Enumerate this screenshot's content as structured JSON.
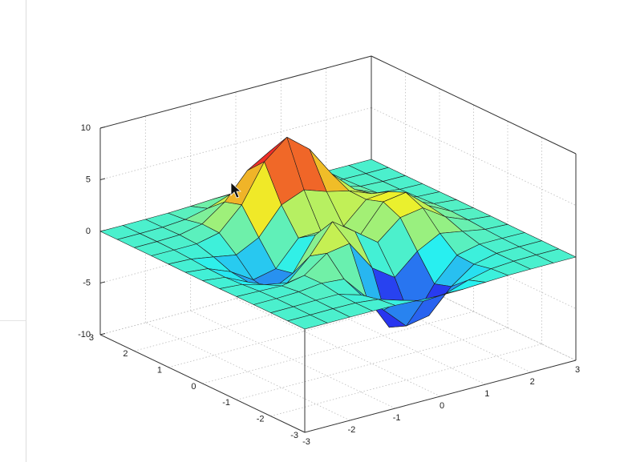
{
  "chart_data": {
    "type": "surface",
    "x": [
      -3,
      -2.5,
      -2,
      -1.5,
      -1,
      -0.5,
      0,
      0.5,
      1,
      1.5,
      2,
      2.5,
      3
    ],
    "y": [
      -3,
      -2.5,
      -2,
      -1.5,
      -1,
      -0.5,
      0,
      0.5,
      1,
      1.5,
      2,
      2.5,
      3
    ],
    "z": [
      [
        0,
        0,
        0,
        0,
        -0.03,
        -0.14,
        -0.24,
        -0.22,
        -0.11,
        -0.03,
        -0.01,
        0,
        0
      ],
      [
        0,
        0,
        0.02,
        0,
        -0.23,
        -0.91,
        -1.57,
        -1.41,
        -0.69,
        -0.18,
        -0.03,
        0,
        0
      ],
      [
        0,
        0.01,
        0.05,
        0.05,
        -0.59,
        -2.64,
        -4.76,
        -4.35,
        -2.1,
        -0.53,
        -0.06,
        0,
        0
      ],
      [
        0,
        0.01,
        0.08,
        0.33,
        0.15,
        -2.19,
        -5.68,
        -5.76,
        -2.64,
        -0.44,
        0.04,
        0.03,
        0
      ],
      [
        -0.01,
        -0.06,
        -0.13,
        0.3,
        1.86,
        2.22,
        -0.72,
        -2.22,
        -0.27,
        0.88,
        0.5,
        0.11,
        0.01
      ],
      [
        -0.03,
        -0.2,
        -0.8,
        -1.21,
        0.8,
        3.55,
        2.0,
        0.39,
        2.2,
        2.56,
        1.12,
        0.24,
        0.03
      ],
      [
        -0.04,
        -0.3,
        -1.33,
        -2.77,
        -1.65,
        1.48,
        0.98,
        0.38,
        2.94,
        3.27,
        1.41,
        0.3,
        0.03
      ],
      [
        -0.03,
        -0.25,
        -1.12,
        -2.49,
        -2.0,
        0.39,
        0.46,
        0.38,
        2.38,
        2.56,
        1.09,
        0.23,
        0.03
      ],
      [
        -0.01,
        -0.11,
        -0.48,
        -0.87,
        0.23,
        2.8,
        3.69,
        2.94,
        2.43,
        1.58,
        0.58,
        0.12,
        0.01
      ],
      [
        0,
        -0.02,
        -0.01,
        0.48,
        2.61,
        6.2,
        8.0,
        6.25,
        3.25,
        1.19,
        0.29,
        0.05,
        0
      ],
      [
        0,
        0.01,
        0.08,
        0.55,
        2.1,
        4.56,
        5.86,
        4.57,
        2.21,
        0.68,
        0.13,
        0.02,
        0
      ],
      [
        0,
        0,
        0.03,
        0.19,
        0.69,
        1.47,
        1.88,
        1.47,
        0.7,
        0.21,
        0.04,
        0,
        0
      ],
      [
        0,
        0,
        0.01,
        0.03,
        0.11,
        0.23,
        0.3,
        0.23,
        0.11,
        0.03,
        0.01,
        0,
        0
      ]
    ],
    "xlim": [
      -3,
      3
    ],
    "xticks": [
      -3,
      -2,
      -1,
      0,
      1,
      2,
      3
    ],
    "ylim": [
      -3,
      3
    ],
    "yticks": [
      -3,
      -2,
      -1,
      0,
      1,
      2,
      3
    ],
    "zlim": [
      -10,
      10
    ],
    "zticks": [
      -10,
      -5,
      0,
      5,
      10
    ],
    "grid": true,
    "colormap": "jet"
  }
}
